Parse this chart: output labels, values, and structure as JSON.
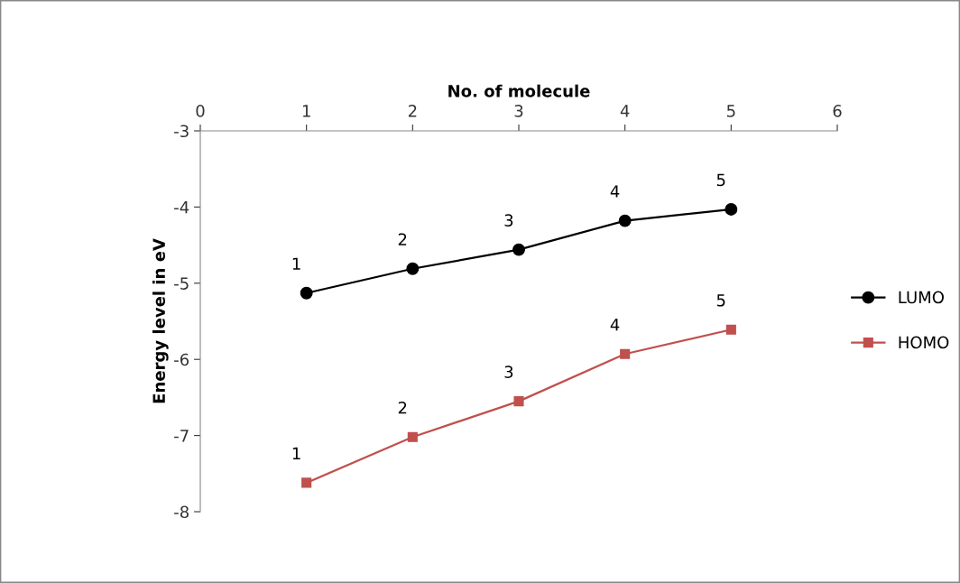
{
  "chart_data": {
    "type": "line",
    "xlabel": "No. of molecule",
    "ylabel": "Energy level in eV",
    "x": [
      1,
      2,
      3,
      4,
      5
    ],
    "series": [
      {
        "name": "LUMO",
        "color": "#000000",
        "marker": "circle",
        "values": [
          -5.13,
          -4.81,
          -4.56,
          -4.18,
          -4.03
        ]
      },
      {
        "name": "HOMO",
        "color": "#c0504d",
        "marker": "square",
        "values": [
          -7.62,
          -7.02,
          -6.55,
          -5.93,
          -5.61
        ]
      }
    ],
    "xlim": [
      0,
      6
    ],
    "xticks": [
      0,
      1,
      2,
      3,
      4,
      5,
      6
    ],
    "ylim": [
      -8,
      -3
    ],
    "yticks": [
      -8,
      -7,
      -6,
      -5,
      -4,
      -3
    ],
    "grid": false,
    "legend": "right",
    "line_style": "solid",
    "annotations": [
      {
        "text": "1",
        "x": 1,
        "y": -5.13
      },
      {
        "text": "2",
        "x": 2,
        "y": -4.81
      },
      {
        "text": "3",
        "x": 3,
        "y": -4.56
      },
      {
        "text": "4",
        "x": 4,
        "y": -4.18
      },
      {
        "text": "5",
        "x": 5,
        "y": -4.03
      },
      {
        "text": "1",
        "x": 1,
        "y": -7.62
      },
      {
        "text": "2",
        "x": 2,
        "y": -7.02
      },
      {
        "text": "3",
        "x": 3,
        "y": -6.55
      },
      {
        "text": "4",
        "x": 4,
        "y": -5.93
      },
      {
        "text": "5",
        "x": 5,
        "y": -5.61
      }
    ]
  }
}
